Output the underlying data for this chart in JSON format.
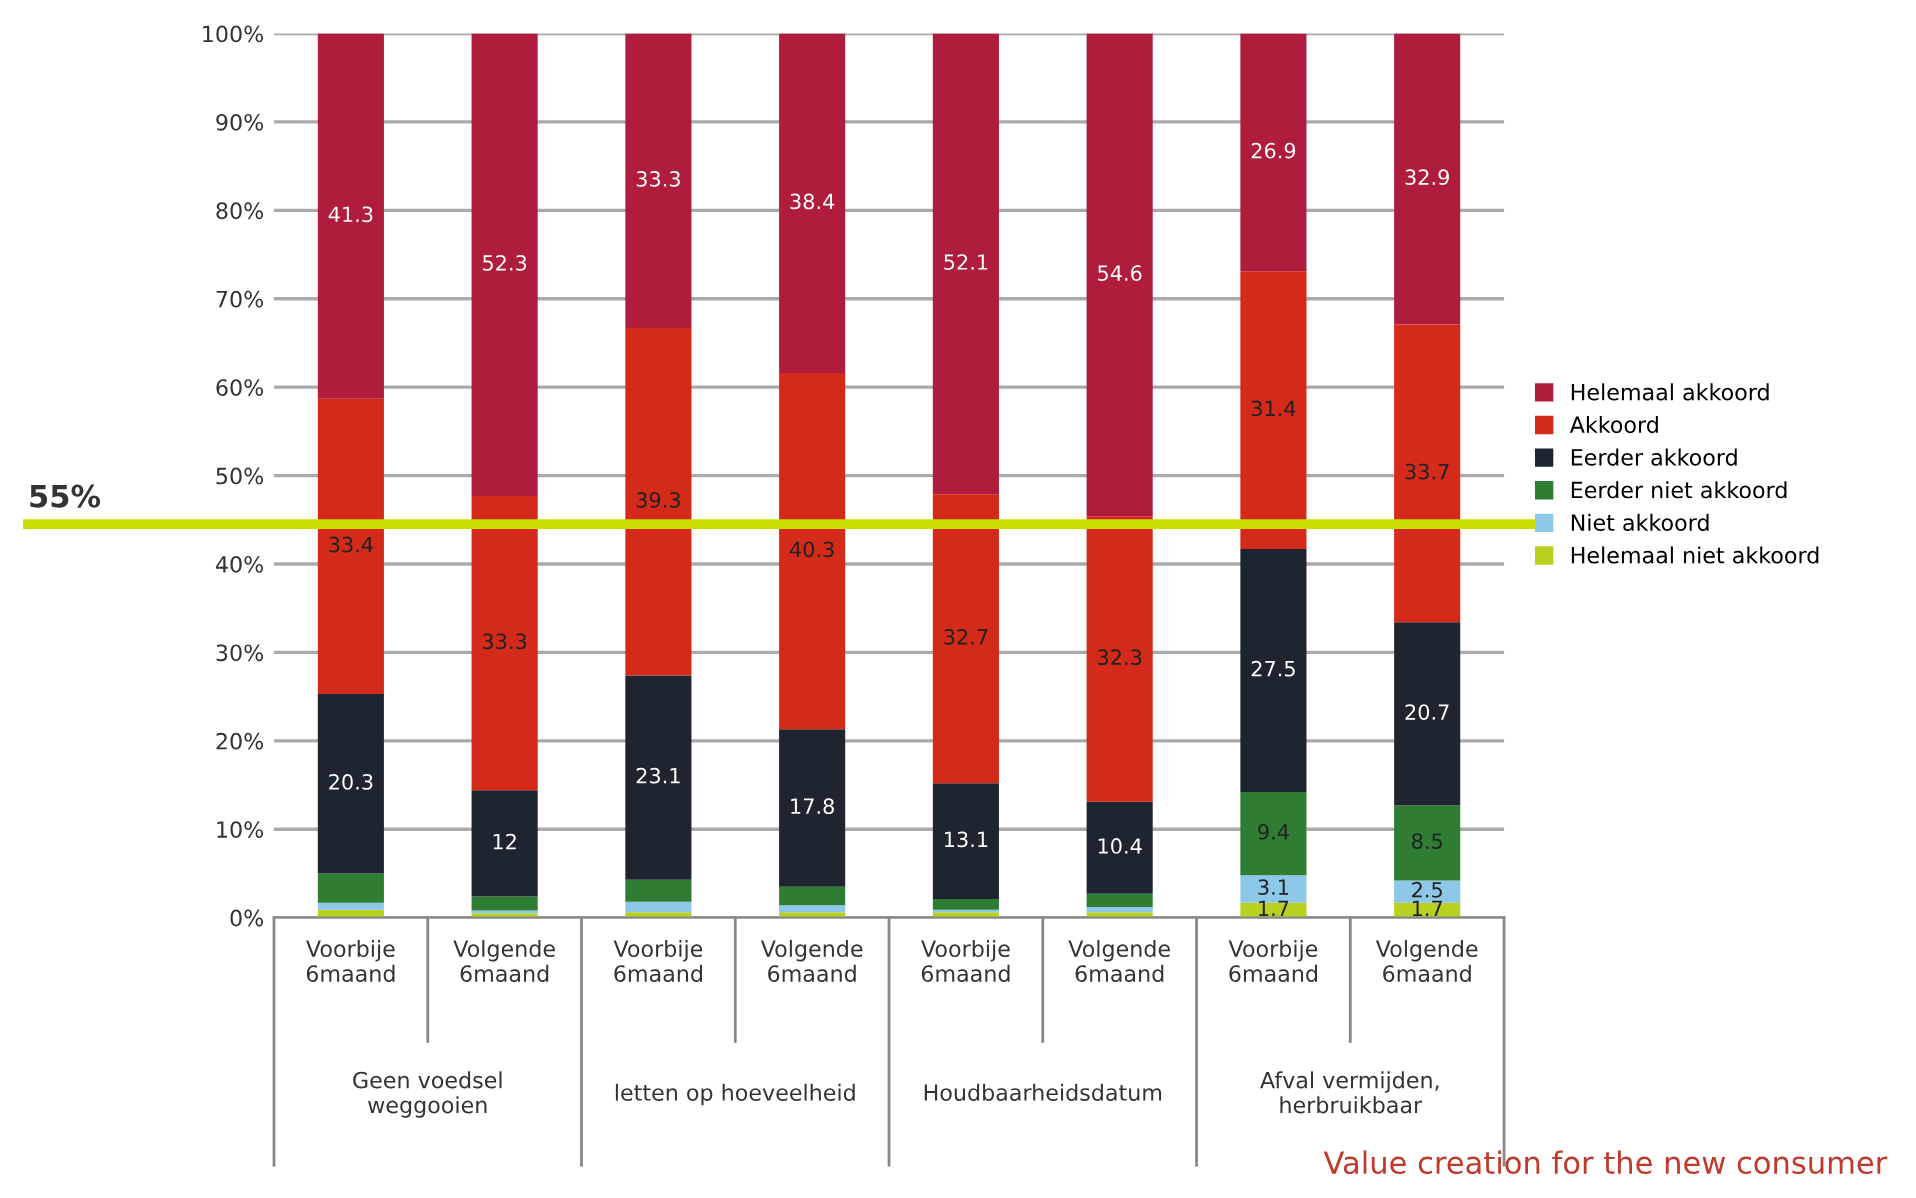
{
  "chart_data": {
    "type": "bar",
    "stacked": true,
    "categories": [
      "Voorbije\n6maand",
      "Volgende\n6maand",
      "Voorbije\n6maand",
      "Volgende\n6maand",
      "Voorbije\n6maand",
      "Volgende\n6maand",
      "Voorbije\n6maand",
      "Volgende\n6maand"
    ],
    "series": [
      {
        "name": "Helemaal niet akkoord",
        "color": "#b8d020",
        "values": [
          0.9,
          0.5,
          0.6,
          0.6,
          0.6,
          0.6,
          1.7,
          1.7
        ],
        "value_labels": [
          null,
          null,
          null,
          null,
          null,
          null,
          "1.7",
          "1.7"
        ]
      },
      {
        "name": "Niet akkoord",
        "color": "#8ec8e8",
        "values": [
          0.8,
          0.3,
          1.2,
          0.8,
          0.3,
          0.6,
          3.1,
          2.5
        ],
        "value_labels": [
          null,
          null,
          null,
          null,
          null,
          null,
          "3.1",
          "2.5"
        ]
      },
      {
        "name": "Eerder niet akkoord",
        "color": "#2e7d32",
        "values": [
          3.3,
          1.6,
          2.5,
          2.1,
          1.2,
          1.5,
          9.4,
          8.5
        ],
        "value_labels": [
          null,
          null,
          null,
          null,
          null,
          null,
          "9.4",
          "8.5"
        ]
      },
      {
        "name": "Eerder akkoord",
        "color": "#1e2530",
        "values": [
          20.3,
          12,
          23.1,
          17.8,
          13.1,
          10.4,
          27.5,
          20.7
        ],
        "value_labels": [
          "20.3",
          "12",
          "23.1",
          "17.8",
          "13.1",
          "10.4",
          "27.5",
          "20.7"
        ]
      },
      {
        "name": "Akkoord",
        "color": "#d42a1a",
        "values": [
          33.4,
          33.3,
          39.3,
          40.3,
          32.7,
          32.3,
          31.4,
          33.7
        ],
        "value_labels": [
          "33.4",
          "33.3",
          "39.3",
          "40.3",
          "32.7",
          "32.3",
          "31.4",
          "33.7"
        ]
      },
      {
        "name": "Helemaal akkoord",
        "color": "#b01c3c",
        "values": [
          41.3,
          52.3,
          33.3,
          38.4,
          52.1,
          54.6,
          26.9,
          32.9
        ],
        "value_labels": [
          "41.3",
          "52.3",
          "33.3",
          "38.4",
          "52.1",
          "54.6",
          "26.9",
          "32.9"
        ]
      }
    ],
    "ylim": [
      0,
      100
    ],
    "yticks": [
      {
        "value": 0,
        "label": "0%"
      },
      {
        "value": 10,
        "label": "10%"
      },
      {
        "value": 20,
        "label": "20%"
      },
      {
        "value": 30,
        "label": "30%"
      },
      {
        "value": 40,
        "label": "40%"
      },
      {
        "value": 50,
        "label": "50%"
      },
      {
        "value": 60,
        "label": "60%"
      },
      {
        "value": 70,
        "label": "70%"
      },
      {
        "value": 80,
        "label": "80%"
      },
      {
        "value": 90,
        "label": "90%"
      },
      {
        "value": 100,
        "label": "100%"
      }
    ],
    "ref_lines": [
      {
        "axis": "y",
        "value": 44.5,
        "color": "#c8dc00"
      }
    ],
    "annotations": [
      "Geen voedsel\nweggooien",
      "letten op hoeveelheid",
      "Houdbaarheidsdatum",
      "Afval vermijden,\nherbruikbaar",
      "Value creation for the new consumer",
      "55%"
    ],
    "grid": "y",
    "legend": "right"
  }
}
